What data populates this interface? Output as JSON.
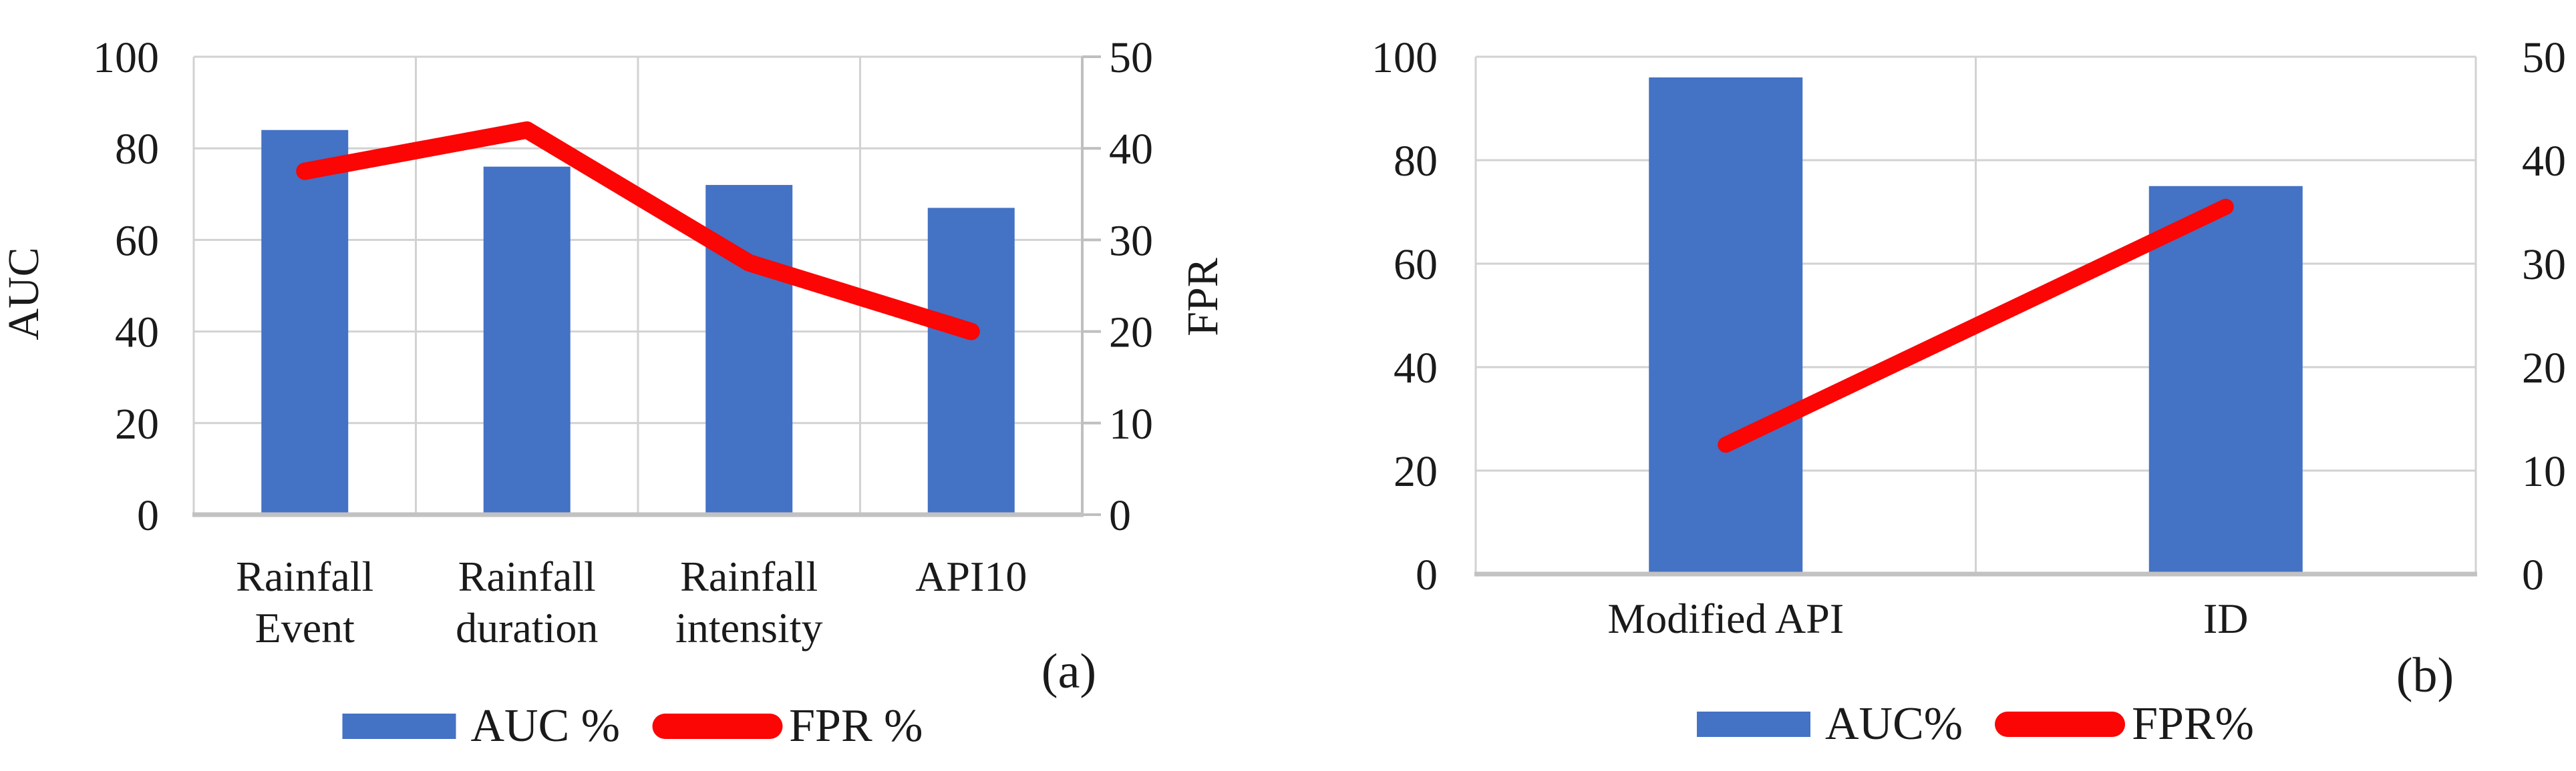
{
  "colors": {
    "bar_blue": "#4472C4",
    "line_red": "#FB0505",
    "grid": "#D2D2D2",
    "axis": "#BFBFBF",
    "baseline": "#C2C2C2",
    "text": "#1A1A1A",
    "background": "#FFFFFF"
  },
  "chart_data": [
    {
      "type": "bar+line",
      "panel_label": "(a)",
      "categories": [
        "Rainfall Event",
        "Rainfall duration",
        "Rainfall intensity",
        "API10"
      ],
      "category_label_lines": [
        [
          "Rainfall",
          "Event"
        ],
        [
          "Rainfall",
          "duration"
        ],
        [
          "Rainfall",
          "intensity"
        ],
        [
          "API10"
        ]
      ],
      "series": [
        {
          "name": "AUC %",
          "type": "bar",
          "axis": "left",
          "values": [
            84,
            76,
            72,
            67
          ]
        },
        {
          "name": "FPR %",
          "type": "line",
          "axis": "right",
          "values": [
            37.5,
            42,
            27.5,
            20
          ]
        }
      ],
      "left_axis": {
        "title": "AUC",
        "min": 0,
        "max": 100,
        "ticks": [
          0,
          20,
          40,
          60,
          80,
          100
        ]
      },
      "right_axis": {
        "title": "FPR",
        "min": 0,
        "max": 50,
        "ticks": [
          0,
          10,
          20,
          30,
          40,
          50
        ]
      },
      "legend": {
        "entries": [
          "AUC %",
          "FPR %"
        ],
        "position": "bottom"
      },
      "grid": {
        "horizontal": true,
        "vertical": true
      }
    },
    {
      "type": "bar+line",
      "panel_label": "(b)",
      "categories": [
        "Modified API",
        "ID"
      ],
      "category_label_lines": [
        [
          "Modified API"
        ],
        [
          "ID"
        ]
      ],
      "series": [
        {
          "name": "AUC%",
          "type": "bar",
          "axis": "left",
          "values": [
            96,
            75
          ]
        },
        {
          "name": "FPR%",
          "type": "line",
          "axis": "right",
          "values": [
            12.5,
            35.5
          ]
        }
      ],
      "left_axis": {
        "title": "",
        "min": 0,
        "max": 100,
        "ticks": [
          0,
          20,
          40,
          60,
          80,
          100
        ]
      },
      "right_axis": {
        "title": "",
        "min": 0,
        "max": 50,
        "ticks": [
          0,
          10,
          20,
          30,
          40,
          50
        ]
      },
      "legend": {
        "entries": [
          "AUC%",
          "FPR%"
        ],
        "position": "bottom"
      },
      "grid": {
        "horizontal": true,
        "vertical": true
      }
    }
  ]
}
